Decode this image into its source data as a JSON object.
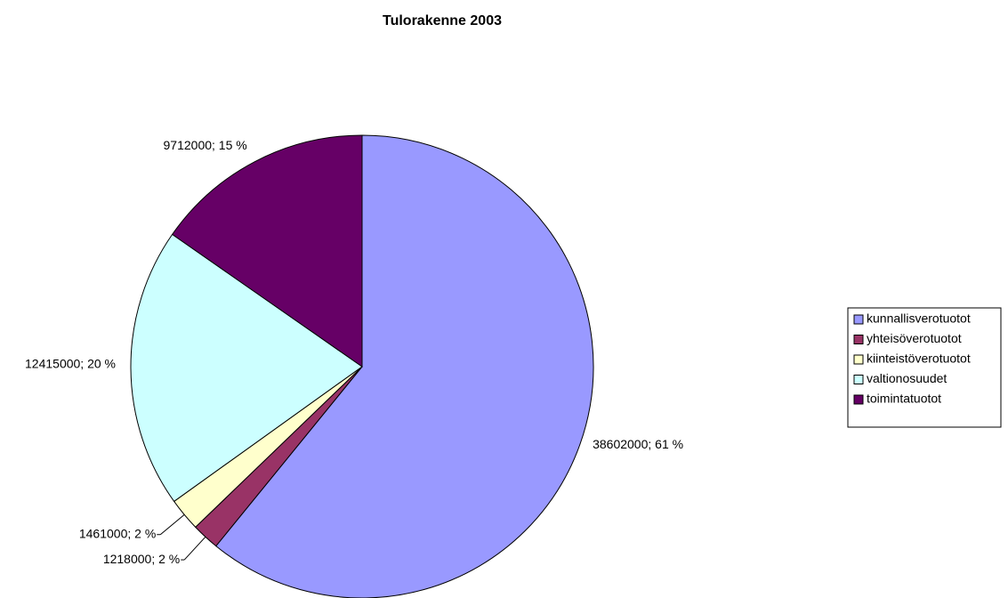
{
  "chart_data": {
    "type": "pie",
    "title": "Tulorakenne 2003",
    "categories": [
      "kunnallisverotuotot",
      "yhteisöverotuotot",
      "kiinteistöverotuotot",
      "valtionosuudet",
      "toimintatuotot"
    ],
    "values": [
      38602000,
      1218000,
      1461000,
      12415000,
      9712000
    ],
    "value_labels": [
      "38602000; 61 %",
      "1218000; 2 %",
      "1461000; 2 %",
      "12415000; 20 %",
      "9712000; 15 %"
    ],
    "colors": [
      "#9999ff",
      "#993366",
      "#ffffcc",
      "#ccffff",
      "#660066"
    ],
    "legend": "right"
  }
}
